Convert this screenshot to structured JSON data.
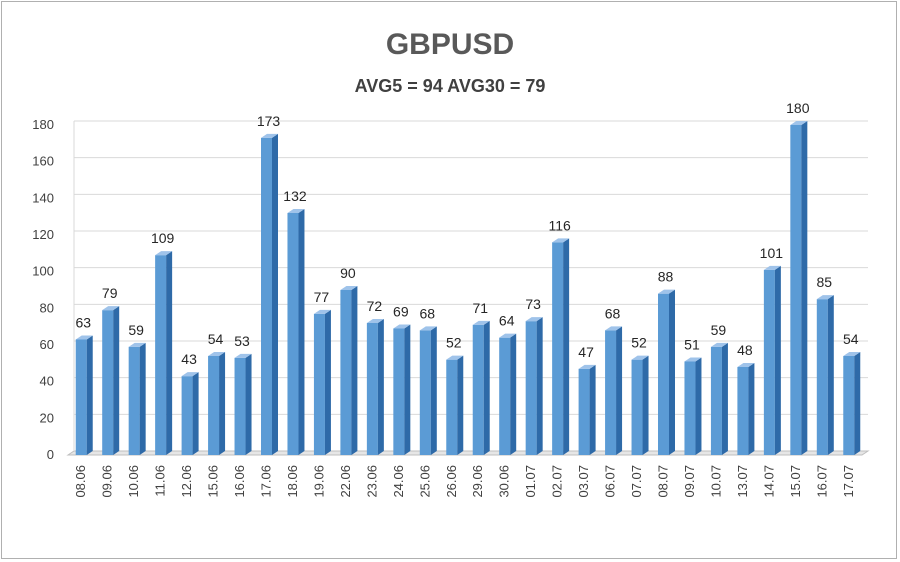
{
  "chart_data": {
    "type": "bar",
    "title": "GBPUSD",
    "subtitle": "AVG5 = 94 AVG30 = 79",
    "categories": [
      "08.06",
      "09.06",
      "10.06",
      "11.06",
      "12.06",
      "15.06",
      "16.06",
      "17.06",
      "18.06",
      "19.06",
      "22.06",
      "23.06",
      "24.06",
      "25.06",
      "26.06",
      "29.06",
      "30.06",
      "01.07",
      "02.07",
      "03.07",
      "06.07",
      "07.07",
      "08.07",
      "09.07",
      "10.07",
      "13.07",
      "14.07",
      "15.07",
      "16.07",
      "17.07"
    ],
    "values": [
      63,
      79,
      59,
      109,
      43,
      54,
      53,
      173,
      132,
      77,
      90,
      72,
      69,
      68,
      52,
      71,
      64,
      73,
      116,
      47,
      68,
      52,
      88,
      51,
      59,
      48,
      101,
      180,
      85,
      54
    ],
    "ylim": [
      0,
      180
    ],
    "yticks": [
      0,
      20,
      40,
      60,
      80,
      100,
      120,
      140,
      160,
      180
    ],
    "xlabel": "",
    "ylabel": "",
    "grid": true,
    "legend": "none",
    "colors": {
      "bar_front": "#5b9bd5",
      "bar_side": "#2e6aa8",
      "bar_top": "#9fc3ea",
      "grid": "#d9d9d9",
      "floor": "#bfbfbf"
    }
  }
}
